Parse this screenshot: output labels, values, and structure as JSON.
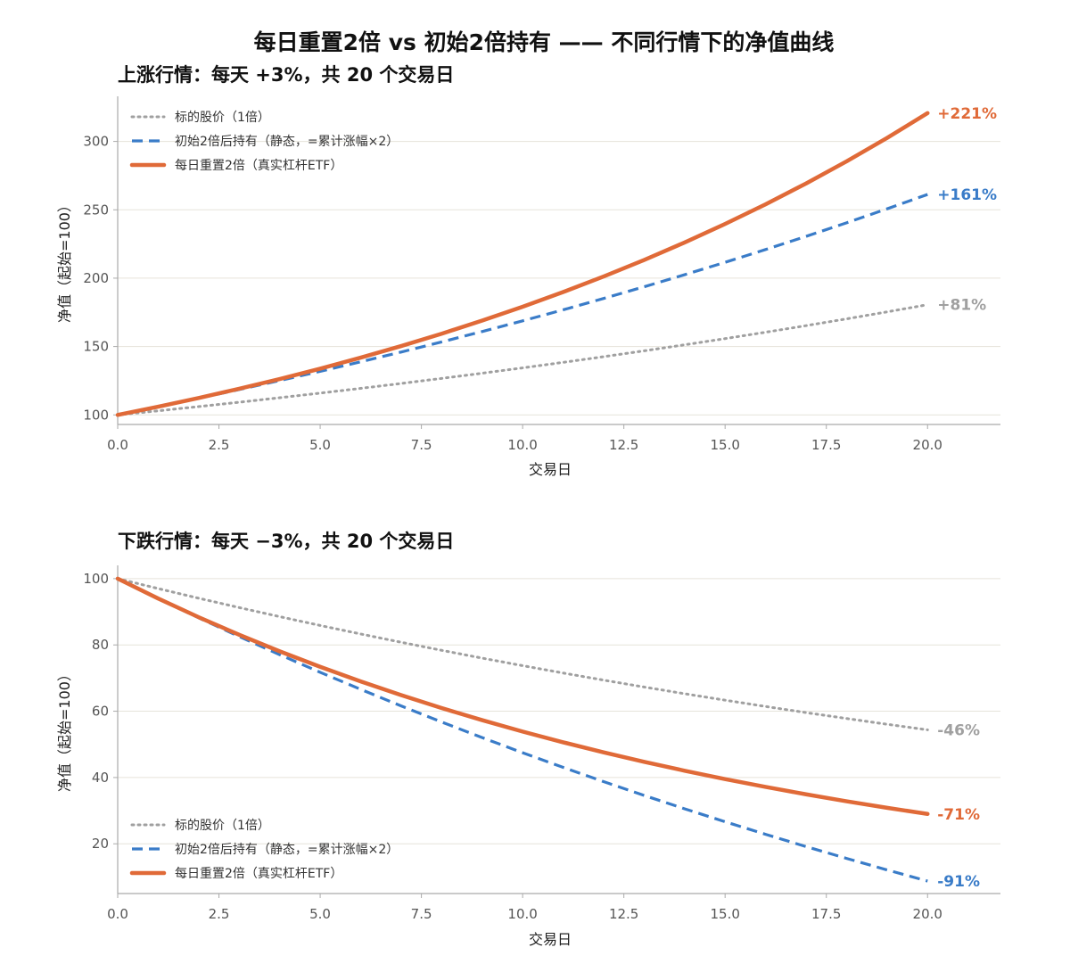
{
  "figure": {
    "title": "每日重置2倍 vs 初始2倍持有 —— 不同行情下的净值曲线"
  },
  "colors": {
    "underlying": "#a0a0a0",
    "static": "#3a7cc8",
    "daily": "#e06a38"
  },
  "chart_data": [
    {
      "type": "line",
      "title": "上涨行情：每天 +3%，共 20 个交易日",
      "xlabel": "交易日",
      "ylabel": "净值（起始=100）",
      "xlim": [
        0,
        21.8
      ],
      "ylim": [
        93,
        333
      ],
      "xticks": [
        0,
        2.5,
        5,
        7.5,
        10,
        12.5,
        15,
        17.5,
        20
      ],
      "xtick_labels": [
        "0.0",
        "2.5",
        "5.0",
        "7.5",
        "10.0",
        "12.5",
        "15.0",
        "17.5",
        "20.0"
      ],
      "yticks": [
        100,
        150,
        200,
        250,
        300
      ],
      "ytick_labels": [
        "100",
        "150",
        "200",
        "250",
        "300"
      ],
      "grid": "horizontal",
      "legend_position": "top-left",
      "x": [
        0,
        1,
        2,
        3,
        4,
        5,
        6,
        7,
        8,
        9,
        10,
        11,
        12,
        13,
        14,
        15,
        16,
        17,
        18,
        19,
        20
      ],
      "series": [
        {
          "name": "标的股价（1倍）",
          "style": "dotted",
          "color_key": "underlying",
          "values": [
            100,
            103,
            106.09,
            109.27,
            112.55,
            115.93,
            119.41,
            122.99,
            126.68,
            130.48,
            134.39,
            138.42,
            142.58,
            146.85,
            151.26,
            155.8,
            160.47,
            165.28,
            170.24,
            175.35,
            180.61
          ],
          "end_label": "+81%"
        },
        {
          "name": "初始2倍后持有（静态，=累计涨幅×2）",
          "style": "dashed",
          "color_key": "static",
          "values": [
            100,
            106,
            112.18,
            118.54,
            125.1,
            131.86,
            138.82,
            145.98,
            153.37,
            160.96,
            168.78,
            176.84,
            185.16,
            193.7,
            202.52,
            211.6,
            220.94,
            230.56,
            240.48,
            250.7,
            261.22
          ],
          "end_label": "+161%"
        },
        {
          "name": "每日重置2倍（真实杠杆ETF）",
          "style": "solid",
          "color_key": "daily",
          "values": [
            100,
            106,
            112.36,
            119.1,
            126.25,
            133.82,
            141.85,
            150.36,
            159.38,
            168.95,
            179.08,
            189.83,
            201.22,
            213.29,
            226.09,
            239.65,
            254.03,
            269.27,
            285.43,
            302.56,
            320.71
          ],
          "end_label": "+221%"
        }
      ]
    },
    {
      "type": "line",
      "title": "下跌行情：每天 −3%，共 20 个交易日",
      "xlabel": "交易日",
      "ylabel": "净值（起始=100）",
      "xlim": [
        0,
        21.8
      ],
      "ylim": [
        5,
        104
      ],
      "xticks": [
        0,
        2.5,
        5,
        7.5,
        10,
        12.5,
        15,
        17.5,
        20
      ],
      "xtick_labels": [
        "0.0",
        "2.5",
        "5.0",
        "7.5",
        "10.0",
        "12.5",
        "15.0",
        "17.5",
        "20.0"
      ],
      "yticks": [
        20,
        40,
        60,
        80,
        100
      ],
      "ytick_labels": [
        "20",
        "40",
        "60",
        "80",
        "100"
      ],
      "grid": "horizontal",
      "legend_position": "bottom-left",
      "x": [
        0,
        1,
        2,
        3,
        4,
        5,
        6,
        7,
        8,
        9,
        10,
        11,
        12,
        13,
        14,
        15,
        16,
        17,
        18,
        19,
        20
      ],
      "series": [
        {
          "name": "标的股价（1倍）",
          "style": "dotted",
          "color_key": "underlying",
          "values": [
            100,
            97,
            94.09,
            91.27,
            88.53,
            85.87,
            83.3,
            80.8,
            78.37,
            76.02,
            73.74,
            71.53,
            69.38,
            67.3,
            65.28,
            63.33,
            61.43,
            59.58,
            57.8,
            56.06,
            54.38
          ],
          "end_label": "-46%"
        },
        {
          "name": "初始2倍后持有（静态，=累计涨幅×2）",
          "style": "dashed",
          "color_key": "static",
          "values": [
            100,
            94,
            88.18,
            82.54,
            77.06,
            71.74,
            66.6,
            61.6,
            56.74,
            52.04,
            47.48,
            43.06,
            38.76,
            34.6,
            30.56,
            26.66,
            22.86,
            19.16,
            15.6,
            12.12,
            8.76
          ],
          "end_label": "-91%"
        },
        {
          "name": "每日重置2倍（真实杠杆ETF）",
          "style": "solid",
          "color_key": "daily",
          "values": [
            100,
            94,
            88.36,
            83.06,
            78.07,
            73.39,
            68.99,
            64.85,
            60.96,
            57.3,
            53.86,
            50.63,
            47.59,
            44.74,
            42.05,
            39.53,
            37.16,
            34.93,
            32.83,
            30.86,
            29.01
          ],
          "end_label": "-71%"
        }
      ]
    }
  ]
}
